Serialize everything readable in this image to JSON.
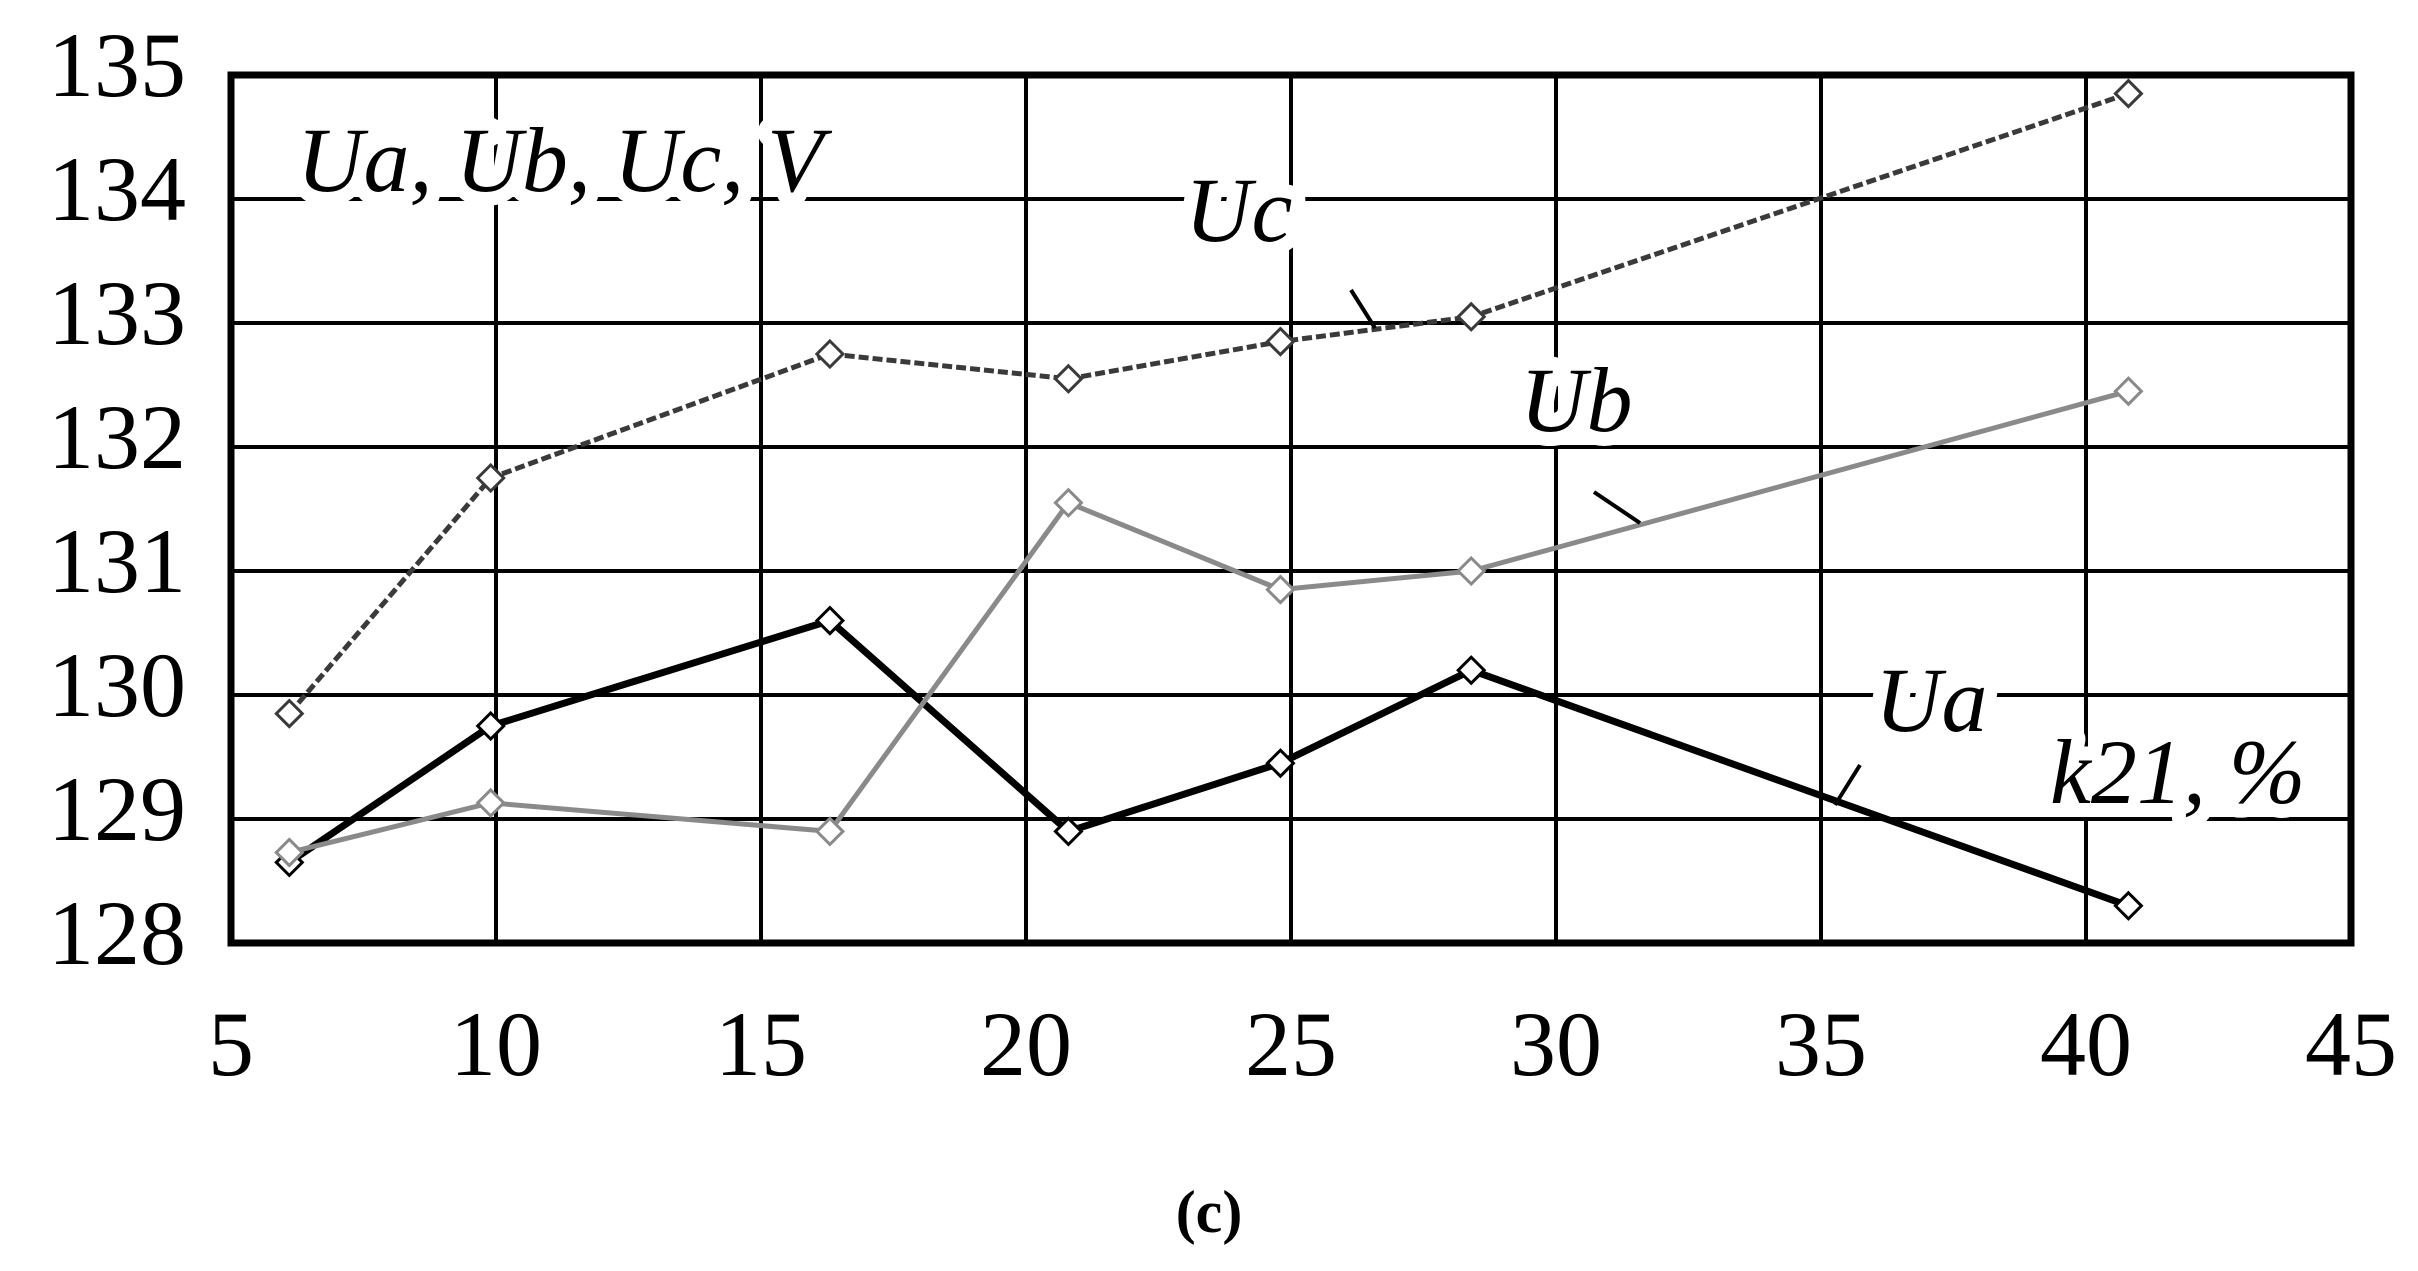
{
  "chart_data": {
    "type": "line",
    "y_label": "Ua, Ub, Uc, V",
    "x_label": "k21, %",
    "caption": "(c)",
    "x": [
      6.1,
      9.9,
      16.3,
      20.8,
      24.8,
      28.4,
      40.8
    ],
    "series": [
      {
        "name": "Ua",
        "color": "#000000",
        "values": [
          128.65,
          129.75,
          130.6,
          128.9,
          129.45,
          130.2,
          128.3
        ]
      },
      {
        "name": "Ub",
        "color": "#8a8a8a",
        "values": [
          128.73,
          129.13,
          128.9,
          131.55,
          130.85,
          131.0,
          132.45
        ]
      },
      {
        "name": "Uc",
        "color": "#3a3a3a",
        "values": [
          129.85,
          131.75,
          132.75,
          132.55,
          132.85,
          133.05,
          134.85
        ]
      }
    ],
    "xlim": [
      5,
      45
    ],
    "xticks": [
      5,
      10,
      15,
      20,
      25,
      30,
      35,
      40,
      45
    ],
    "ylim": [
      128,
      135
    ],
    "yticks": [
      128,
      129,
      130,
      131,
      132,
      133,
      134,
      135
    ],
    "grid": true
  }
}
